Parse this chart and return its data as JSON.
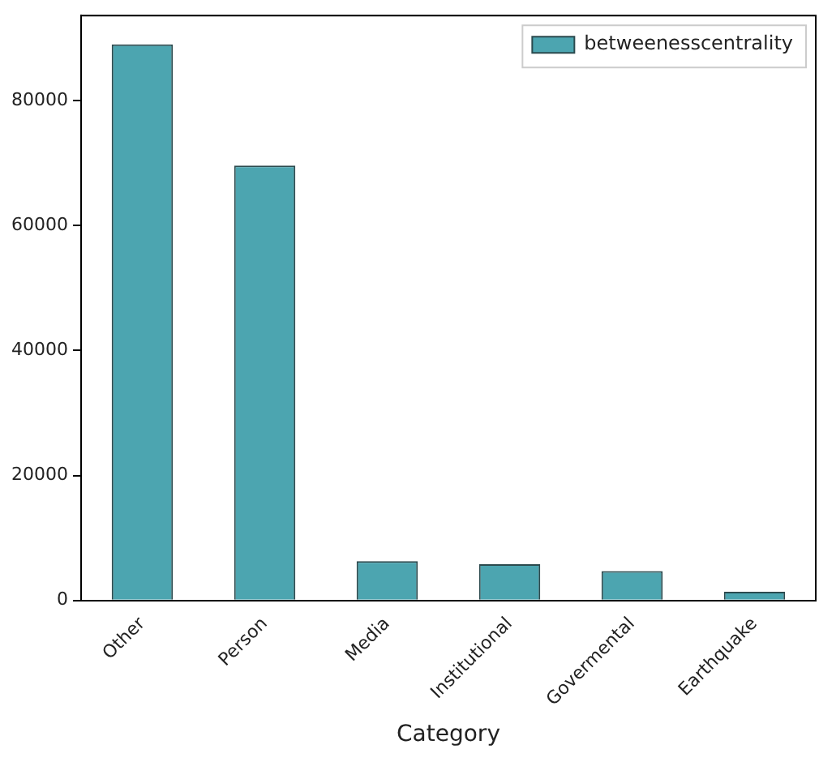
{
  "chart_data": {
    "type": "bar",
    "xlabel": "Category",
    "categories": [
      "Other",
      "Person",
      "Media",
      "Institutional",
      "Govermental",
      "Earthquake"
    ],
    "series": [
      {
        "name": "betweenesscentrality",
        "color": "#4ca5b0",
        "values": [
          89000,
          69600,
          6300,
          5800,
          4700,
          1400
        ]
      }
    ],
    "ylim": [
      0,
      93600
    ],
    "yticks": [
      0,
      20000,
      40000,
      60000,
      80000
    ],
    "grid": false,
    "legend": "top right"
  }
}
